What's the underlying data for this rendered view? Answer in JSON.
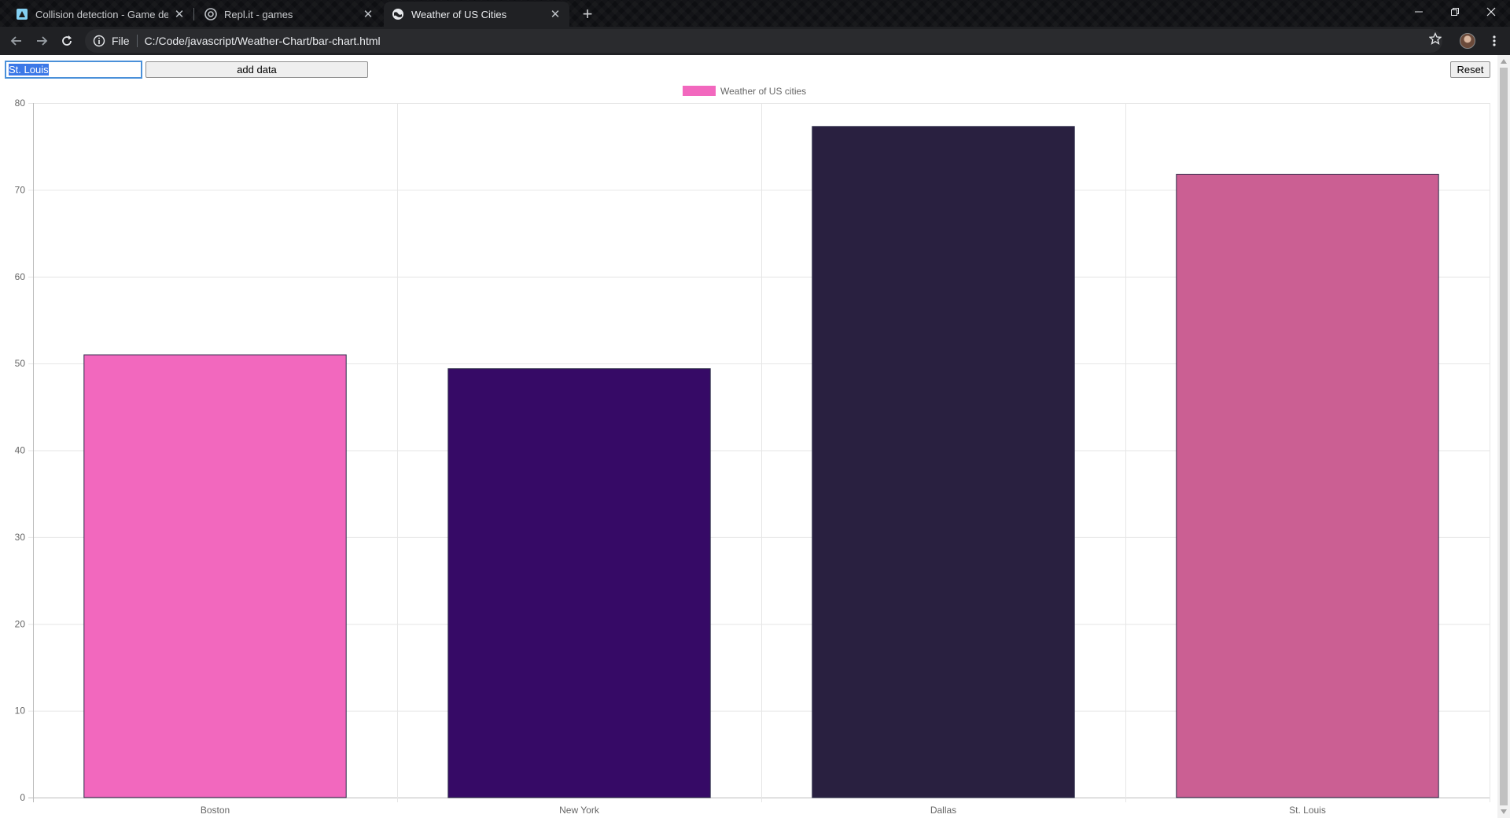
{
  "browser": {
    "tabs": [
      {
        "title": "Collision detection - Game devel",
        "icon": "mdn-icon",
        "active": false
      },
      {
        "title": "Repl.it - games",
        "icon": "replit-icon",
        "active": false
      },
      {
        "title": "Weather of US Cities",
        "icon": "globe-icon",
        "active": true
      }
    ],
    "address": {
      "scheme": "File",
      "url": "C:/Code/javascript/Weather-Chart/bar-chart.html"
    }
  },
  "controls": {
    "city_input_value": "St. Louis",
    "add_button_label": "add data",
    "reset_button_label": "Reset"
  },
  "chart_data": {
    "type": "bar",
    "categories": [
      "Boston",
      "New York",
      "Dallas",
      "St. Louis"
    ],
    "series": [
      {
        "name": "Weather of US cities",
        "values": [
          51,
          49.4,
          77.3,
          71.8
        ]
      }
    ],
    "bar_colors": [
      "#f268be",
      "#360a66",
      "#292040",
      "#cb5f93"
    ],
    "legend_color": "#f268be",
    "legend_position": "top",
    "ylim": [
      0,
      80
    ],
    "yticks": [
      0,
      10,
      20,
      30,
      40,
      50,
      60,
      70,
      80
    ],
    "grid": true,
    "title": "",
    "xlabel": "",
    "ylabel": ""
  }
}
